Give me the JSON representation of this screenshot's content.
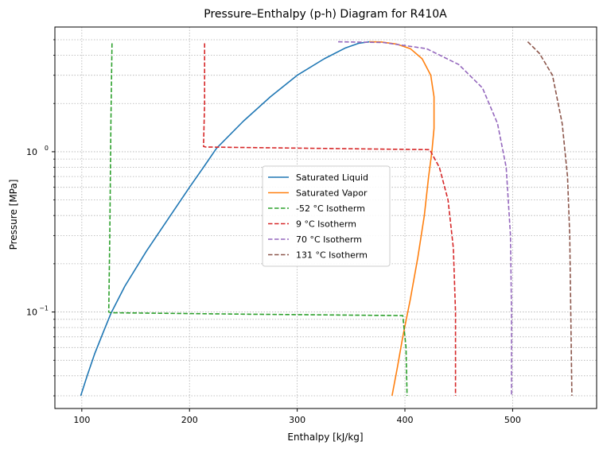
{
  "chart_data": {
    "type": "line",
    "title": "Pressure–Enthalpy (p-h) Diagram for R410A",
    "xlabel": "Enthalpy [kJ/kg]",
    "ylabel": "Pressure [MPa]",
    "xlim": [
      75,
      578
    ],
    "ylim": [
      0.025,
      6.0
    ],
    "yscale": "log",
    "grid": true,
    "legend_position": "center",
    "x_ticks": [
      100,
      200,
      300,
      400,
      500
    ],
    "y_major_ticks": [
      {
        "value": 0.1,
        "base": "10",
        "exp": "−1"
      },
      {
        "value": 1.0,
        "base": "10",
        "exp": "0"
      }
    ],
    "series": [
      {
        "name": "Saturated Liquid",
        "color": "#1f77b4",
        "dash": "solid",
        "points": [
          [
            99,
            0.03
          ],
          [
            105,
            0.04
          ],
          [
            112,
            0.055
          ],
          [
            120,
            0.075
          ],
          [
            127,
            0.098
          ],
          [
            140,
            0.145
          ],
          [
            160,
            0.24
          ],
          [
            180,
            0.38
          ],
          [
            200,
            0.6
          ],
          [
            213,
            0.8
          ],
          [
            225,
            1.05
          ],
          [
            250,
            1.55
          ],
          [
            275,
            2.2
          ],
          [
            300,
            3.0
          ],
          [
            325,
            3.8
          ],
          [
            345,
            4.45
          ],
          [
            357,
            4.75
          ],
          [
            367,
            4.85
          ]
        ]
      },
      {
        "name": "Saturated Vapor",
        "color": "#ff7f0e",
        "dash": "solid",
        "points": [
          [
            388,
            0.03
          ],
          [
            393,
            0.045
          ],
          [
            398,
            0.07
          ],
          [
            405,
            0.12
          ],
          [
            412,
            0.22
          ],
          [
            418,
            0.4
          ],
          [
            422,
            0.7
          ],
          [
            425,
            1.0
          ],
          [
            427,
            1.4
          ],
          [
            427,
            2.2
          ],
          [
            424,
            3.0
          ],
          [
            416,
            3.8
          ],
          [
            405,
            4.4
          ],
          [
            392,
            4.7
          ],
          [
            378,
            4.84
          ],
          [
            367,
            4.85
          ]
        ]
      },
      {
        "name": "-52 °C Isotherm",
        "color": "#2ca02c",
        "dash": "dashed",
        "points": [
          [
            128,
            4.75
          ],
          [
            127,
            1.5
          ],
          [
            126,
            0.3
          ],
          [
            125,
            0.1
          ],
          [
            127,
            0.099
          ],
          [
            250,
            0.097
          ],
          [
            398,
            0.095
          ],
          [
            401,
            0.06
          ],
          [
            402,
            0.03
          ]
        ]
      },
      {
        "name": "9 °C Isotherm",
        "color": "#d62728",
        "dash": "dashed",
        "points": [
          [
            214,
            4.75
          ],
          [
            214,
            2.0
          ],
          [
            213,
            1.08
          ],
          [
            215,
            1.07
          ],
          [
            320,
            1.05
          ],
          [
            423,
            1.03
          ],
          [
            432,
            0.8
          ],
          [
            440,
            0.5
          ],
          [
            445,
            0.25
          ],
          [
            447,
            0.1
          ],
          [
            447,
            0.03
          ]
        ]
      },
      {
        "name": "70 °C Isotherm",
        "color": "#9467bd",
        "dash": "dashed",
        "points": [
          [
            338,
            4.85
          ],
          [
            380,
            4.8
          ],
          [
            420,
            4.4
          ],
          [
            450,
            3.5
          ],
          [
            472,
            2.5
          ],
          [
            486,
            1.5
          ],
          [
            494,
            0.8
          ],
          [
            498,
            0.3
          ],
          [
            499,
            0.1
          ],
          [
            499,
            0.03
          ]
        ]
      },
      {
        "name": "131 °C Isotherm",
        "color": "#8c564b",
        "dash": "dashed",
        "points": [
          [
            514,
            4.85
          ],
          [
            525,
            4.1
          ],
          [
            537,
            3.0
          ],
          [
            546,
            1.5
          ],
          [
            551,
            0.7
          ],
          [
            553,
            0.3
          ],
          [
            554,
            0.1
          ],
          [
            555,
            0.03
          ]
        ]
      }
    ]
  }
}
